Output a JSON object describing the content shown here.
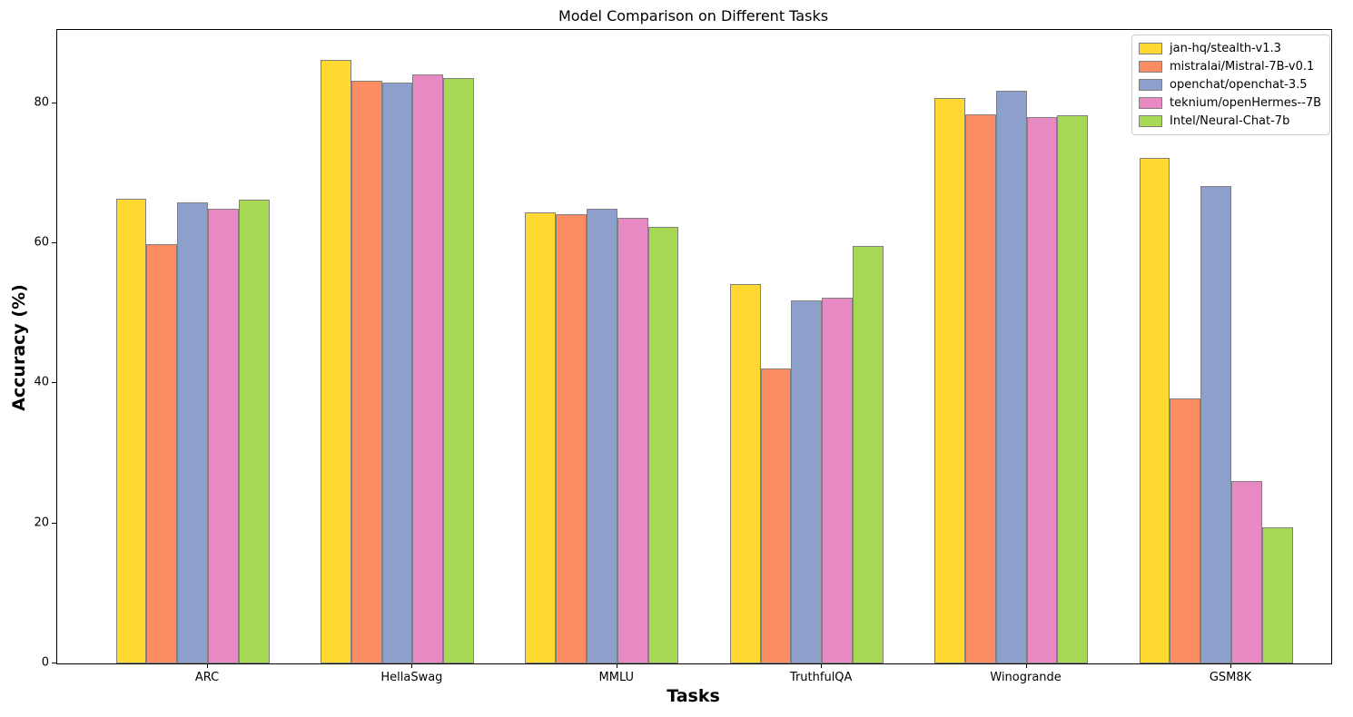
{
  "figure": {
    "title": "Model Comparison on Different Tasks",
    "xlabel": "Tasks",
    "ylabel": "Accuracy (%)"
  },
  "chart_data": {
    "type": "bar",
    "title": "Model Comparison on Different Tasks",
    "xlabel": "Tasks",
    "ylabel": "Accuracy (%)",
    "categories": [
      "ARC",
      "HellaSwag",
      "MMLU",
      "TruthfulQA",
      "Winogrande",
      "GSM8K"
    ],
    "series": [
      {
        "name": "jan-hq/stealth-v1.3",
        "color": "#ffd92f",
        "values": [
          66.4,
          86.2,
          64.4,
          54.2,
          80.8,
          72.2
        ]
      },
      {
        "name": "mistralai/Mistral-7B-v0.1",
        "color": "#fc8d62",
        "values": [
          59.9,
          83.3,
          64.2,
          42.2,
          78.4,
          37.8
        ]
      },
      {
        "name": "openchat/openchat-3.5",
        "color": "#8da0cb",
        "values": [
          65.9,
          83.0,
          65.0,
          51.9,
          81.8,
          68.2
        ]
      },
      {
        "name": "teknium/openHermes--7B",
        "color": "#e78ac3",
        "values": [
          64.9,
          84.2,
          63.7,
          52.2,
          78.1,
          26.0
        ]
      },
      {
        "name": "Intel/Neural-Chat-7b",
        "color": "#a6d854",
        "values": [
          66.2,
          83.6,
          62.3,
          59.6,
          78.3,
          19.5
        ]
      }
    ],
    "yticks": [
      0,
      20,
      40,
      60,
      80
    ],
    "ylim": [
      0,
      90.5
    ],
    "grid": false,
    "legend_position": "upper right",
    "bar_edge_color": "#808080",
    "axes_background": "#ffffff"
  }
}
